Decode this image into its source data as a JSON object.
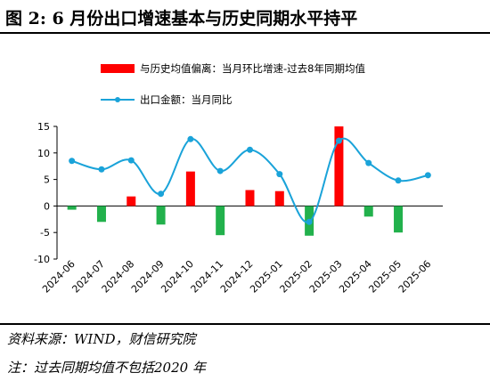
{
  "header": {
    "title": "图 2:  6 月份出口增速基本与历史同期水平持平"
  },
  "legend": {
    "bar_label": "与历史均值偏离：当月环比增速-过去8年同期均值",
    "line_label": "出口金额：当月同比"
  },
  "footer": {
    "source": "资料来源：WIND，财信研究院",
    "note": "注：过去同期均值不包括2020 年"
  },
  "colors": {
    "bar_positive": "#ff0000",
    "bar_negative": "#22b14c",
    "line": "#1aa3d9"
  },
  "chart_data": {
    "type": "bar",
    "categories": [
      "2024-06",
      "2024-07",
      "2024-08",
      "2024-09",
      "2024-10",
      "2024-11",
      "2024-12",
      "2025-01",
      "2025-02",
      "2025-03",
      "2025-04",
      "2025-05",
      "2025-06"
    ],
    "series": [
      {
        "name": "与历史均值偏离：当月环比增速-过去8年同期均值",
        "type": "bar",
        "values": [
          -0.7,
          -3.0,
          1.8,
          -3.5,
          6.5,
          -5.5,
          3.0,
          2.8,
          -5.6,
          15.0,
          -2.0,
          -5.0,
          0.0
        ]
      },
      {
        "name": "出口金额：当月同比",
        "type": "line",
        "values": [
          8.5,
          6.9,
          8.6,
          2.3,
          12.6,
          6.6,
          10.6,
          6.0,
          -3.0,
          12.3,
          8.1,
          4.8,
          5.8
        ]
      }
    ],
    "xlabel": "",
    "ylabel": "",
    "ylim": [
      -10,
      15
    ],
    "yticks": [
      15,
      10,
      5,
      0,
      -5,
      -10
    ],
    "grid": false,
    "legend_position": "top"
  }
}
